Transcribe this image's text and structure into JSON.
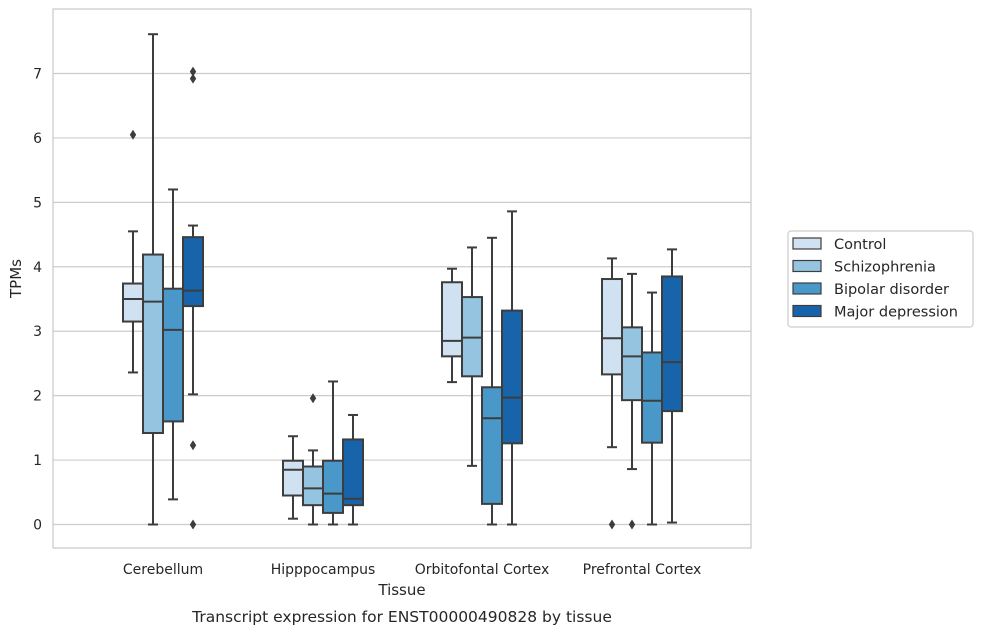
{
  "chart_data": {
    "type": "box",
    "title": "",
    "caption": "Transcript expression for ENST00000490828 by tissue",
    "xlabel": "Tissue",
    "ylabel": "TPMs",
    "ylim": [
      -0.35,
      7.95
    ],
    "yticks": [
      0,
      1,
      2,
      3,
      4,
      5,
      6,
      7
    ],
    "grid": "horizontal",
    "legend_position": "right",
    "categories": [
      "Cerebellum",
      "Hipppocampus",
      "Orbitofontal Cortex",
      "Prefrontal Cortex"
    ],
    "series": [
      {
        "name": "Control",
        "color": "#d0e1f2",
        "boxes": [
          {
            "whislo": 2.36,
            "q1": 3.15,
            "med": 3.5,
            "q3": 3.74,
            "whishi": 4.55,
            "fliers": [
              6.05
            ]
          },
          {
            "whislo": 0.09,
            "q1": 0.45,
            "med": 0.85,
            "q3": 0.99,
            "whishi": 1.37,
            "fliers": []
          },
          {
            "whislo": 2.21,
            "q1": 2.61,
            "med": 2.85,
            "q3": 3.76,
            "whishi": 3.97,
            "fliers": []
          },
          {
            "whislo": 1.2,
            "q1": 2.33,
            "med": 2.89,
            "q3": 3.81,
            "whishi": 4.13,
            "fliers": [
              0.0
            ]
          }
        ]
      },
      {
        "name": "Schizophrenia",
        "color": "#94c4df",
        "boxes": [
          {
            "whislo": 0.0,
            "q1": 1.42,
            "med": 3.46,
            "q3": 4.19,
            "whishi": 7.61,
            "fliers": []
          },
          {
            "whislo": 0.0,
            "q1": 0.3,
            "med": 0.56,
            "q3": 0.9,
            "whishi": 1.15,
            "fliers": [
              1.96
            ]
          },
          {
            "whislo": 0.91,
            "q1": 2.3,
            "med": 2.9,
            "q3": 3.53,
            "whishi": 4.3,
            "fliers": []
          },
          {
            "whislo": 0.86,
            "q1": 1.93,
            "med": 2.61,
            "q3": 3.06,
            "whishi": 3.89,
            "fliers": [
              0.0
            ]
          }
        ]
      },
      {
        "name": "Bipolar disorder",
        "color": "#4a98c9",
        "boxes": [
          {
            "whislo": 0.39,
            "q1": 1.6,
            "med": 3.02,
            "q3": 3.66,
            "whishi": 5.2,
            "fliers": []
          },
          {
            "whislo": 0.0,
            "q1": 0.18,
            "med": 0.48,
            "q3": 0.99,
            "whishi": 2.22,
            "fliers": []
          },
          {
            "whislo": 0.0,
            "q1": 0.32,
            "med": 1.65,
            "q3": 2.13,
            "whishi": 4.45,
            "fliers": []
          },
          {
            "whislo": 0.0,
            "q1": 1.27,
            "med": 1.92,
            "q3": 2.67,
            "whishi": 3.6,
            "fliers": []
          }
        ]
      },
      {
        "name": "Major depression",
        "color": "#1764ab",
        "boxes": [
          {
            "whislo": 2.02,
            "q1": 3.39,
            "med": 3.63,
            "q3": 4.46,
            "whishi": 4.64,
            "fliers": [
              1.23,
              0.0,
              6.92,
              7.03
            ]
          },
          {
            "whislo": 0.0,
            "q1": 0.3,
            "med": 0.4,
            "q3": 1.32,
            "whishi": 1.7,
            "fliers": []
          },
          {
            "whislo": 0.0,
            "q1": 1.26,
            "med": 1.97,
            "q3": 3.32,
            "whishi": 4.86,
            "fliers": []
          },
          {
            "whislo": 0.03,
            "q1": 1.76,
            "med": 2.52,
            "q3": 3.85,
            "whishi": 4.27,
            "fliers": []
          }
        ]
      }
    ]
  }
}
